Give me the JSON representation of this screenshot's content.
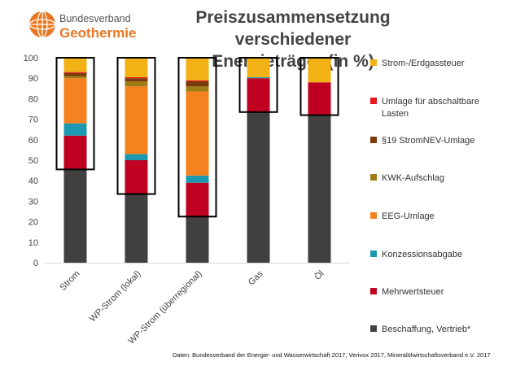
{
  "logo": {
    "line1": "Bundesverband",
    "line2": "Geothermie"
  },
  "colors": {
    "bar_bg": "#595959",
    "frame": "#000000",
    "grid": "#d9d9d9",
    "logo_orange": "#e87722",
    "logo_gray": "#555555"
  },
  "chart_data": {
    "type": "bar",
    "stacked": true,
    "title": "Preiszusammensetzung verschiedener Energieträger (in %)",
    "title_lines": [
      "Preiszusammensetzung verschiedener",
      "Energieträger (in %)"
    ],
    "categories": [
      "Strom",
      "WP-Strom (lokal)",
      "WP-Strom (überregional)",
      "Gas",
      "Öl"
    ],
    "yticks": [
      0,
      10,
      20,
      30,
      40,
      50,
      60,
      70,
      80,
      90,
      100
    ],
    "ylim": [
      0,
      100
    ],
    "series": [
      {
        "name": "Beschaffung, Vertrieb*",
        "color": "#404040",
        "values": [
          45.5,
          33.5,
          22.5,
          73.5,
          72
        ]
      },
      {
        "name": "Mehrwertsteuer",
        "color": "#c00020",
        "values": [
          16.5,
          16.5,
          16.5,
          16.5,
          16
        ]
      },
      {
        "name": "Konzessionsabgabe",
        "color": "#1c98b0",
        "values": [
          6,
          3,
          3.5,
          0.5,
          0
        ]
      },
      {
        "name": "EEG-Umlage",
        "color": "#f5821f",
        "values": [
          22,
          33,
          41,
          0,
          0
        ]
      },
      {
        "name": "KWK-Aufschlag",
        "color": "#9e7d14",
        "values": [
          1,
          2.5,
          2.5,
          0,
          0
        ]
      },
      {
        "name": "§19 StromNEV-Umlage",
        "color": "#7a3a0c",
        "values": [
          1.5,
          1.5,
          2.5,
          0,
          0
        ]
      },
      {
        "name": "Umlage für abschaltbare Lasten",
        "color": "#e8131b",
        "values": [
          0.5,
          0.5,
          0.5,
          0,
          0
        ]
      },
      {
        "name": "Strom-/Erdgassteuer",
        "color": "#f2b216",
        "values": [
          7,
          9.5,
          11,
          9.5,
          12
        ]
      }
    ],
    "highlight_frames": [
      {
        "category": "Strom",
        "from": 45.5,
        "to": 100
      },
      {
        "category": "WP-Strom (lokal)",
        "from": 33.5,
        "to": 100
      },
      {
        "category": "WP-Strom (überregional)",
        "from": 22.5,
        "to": 100
      },
      {
        "category": "Gas",
        "from": 73.5,
        "to": 100
      },
      {
        "category": "Öl",
        "from": 72,
        "to": 100
      }
    ],
    "legend": [
      {
        "label": "Strom-/Erdgassteuer",
        "color": "#f2b216"
      },
      {
        "label": "Umlage für abschaltbare Lasten",
        "color": "#e8131b"
      },
      {
        "label": "§19 StromNEV-Umlage",
        "color": "#7a3a0c"
      },
      {
        "label": "KWK-Aufschlag",
        "color": "#9e7d14"
      },
      {
        "label": "EEG-Umlage",
        "color": "#f5821f"
      },
      {
        "label": "Konzessionsabgabe",
        "color": "#1c98b0"
      },
      {
        "label": "Mehrwertsteuer",
        "color": "#c00020"
      },
      {
        "label": "Beschaffung, Vertrieb*",
        "color": "#404040"
      }
    ],
    "legend_placement": "right",
    "grid": false,
    "source": "Daten: Bundesverband der Energie- und Wasserwirtschaft 2017, Verivox 2017, Mineralölwirtschaftsverband e.V. 2017"
  }
}
